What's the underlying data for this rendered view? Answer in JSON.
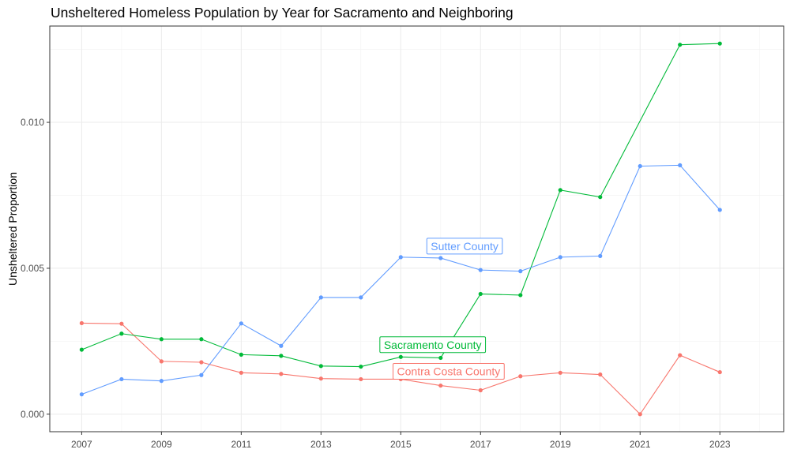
{
  "chart_data": {
    "type": "line",
    "title": "Unsheltered Homeless Population by Year for Sacramento and Neighboring",
    "xlabel": "",
    "ylabel": "Unsheltered Proportion",
    "xlim": [
      2006.2,
      2024.6
    ],
    "ylim": [
      -0.0006,
      0.0133
    ],
    "x_ticks": [
      2007,
      2009,
      2011,
      2013,
      2015,
      2017,
      2019,
      2021,
      2023
    ],
    "y_ticks": [
      0.0,
      0.005,
      0.01
    ],
    "y_tick_labels": [
      "0.000",
      "0.005",
      "0.010"
    ],
    "grid": true,
    "legend": "none (direct labels)",
    "x": [
      2007,
      2008,
      2009,
      2010,
      2011,
      2012,
      2013,
      2014,
      2015,
      2016,
      2017,
      2018,
      2019,
      2020,
      2021,
      2022,
      2023
    ],
    "series": [
      {
        "name": "Contra Costa County",
        "color": "#F8766D",
        "values": [
          0.00312,
          0.0031,
          0.00181,
          0.00178,
          0.00142,
          0.00138,
          0.00122,
          0.0012,
          0.0012,
          0.00098,
          0.00082,
          0.0013,
          0.00142,
          0.00136,
          0.0,
          0.00202,
          0.00144
        ],
        "label_x": 2016.2,
        "label_y": 0.00147
      },
      {
        "name": "Sacramento County",
        "color": "#00BA38",
        "values": [
          0.00221,
          0.00276,
          0.00257,
          0.00257,
          0.00204,
          0.002,
          0.00165,
          0.00163,
          0.00196,
          0.00193,
          0.00412,
          0.00408,
          0.00768,
          0.00744,
          null,
          0.01266,
          0.0127
        ],
        "label_x": 2015.8,
        "label_y": 0.00238
      },
      {
        "name": "Sutter County",
        "color": "#619CFF",
        "values": [
          0.00068,
          0.0012,
          0.00114,
          0.00134,
          0.00311,
          0.00234,
          0.004,
          0.004,
          0.00538,
          0.00535,
          0.00494,
          0.0049,
          0.00538,
          0.00542,
          0.0085,
          0.00853,
          0.007
        ],
        "label_x": 2016.6,
        "label_y": 0.00576
      }
    ]
  }
}
